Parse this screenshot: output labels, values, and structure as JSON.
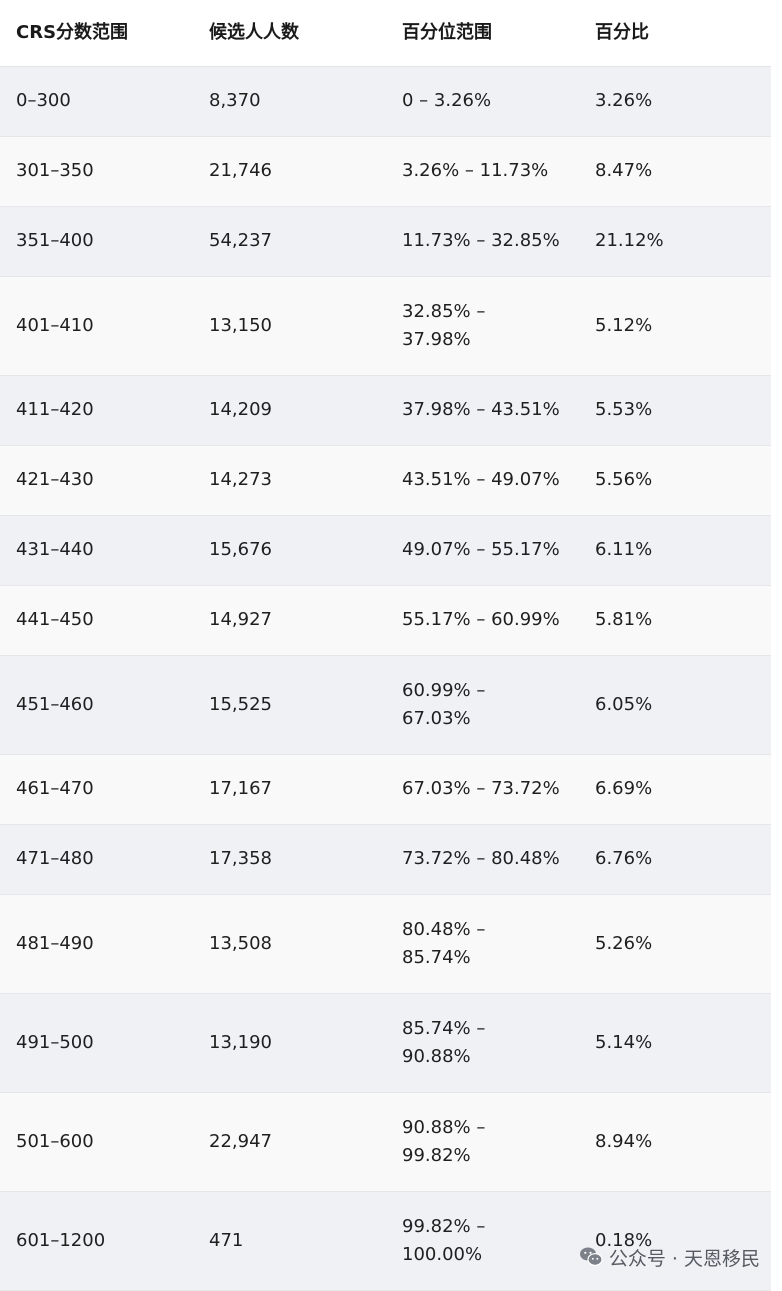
{
  "table": {
    "headers": [
      "CRS分数范围",
      "候选人人数",
      "百分位范围",
      "百分比"
    ],
    "rows": [
      {
        "score": "0–300",
        "count": "8,370",
        "range": [
          "0 – 3.26%"
        ],
        "pct": "3.26%"
      },
      {
        "score": "301–350",
        "count": "21,746",
        "range": [
          "3.26% – 11.73%"
        ],
        "pct": "8.47%"
      },
      {
        "score": "351–400",
        "count": "54,237",
        "range": [
          "11.73% – 32.85%"
        ],
        "pct": "21.12%"
      },
      {
        "score": "401–410",
        "count": "13,150",
        "range": [
          "32.85% –",
          "37.98%"
        ],
        "pct": "5.12%"
      },
      {
        "score": "411–420",
        "count": "14,209",
        "range": [
          "37.98% – 43.51%"
        ],
        "pct": "5.53%"
      },
      {
        "score": "421–430",
        "count": "14,273",
        "range": [
          "43.51% – 49.07%"
        ],
        "pct": "5.56%"
      },
      {
        "score": "431–440",
        "count": "15,676",
        "range": [
          "49.07% – 55.17%"
        ],
        "pct": "6.11%"
      },
      {
        "score": "441–450",
        "count": "14,927",
        "range": [
          "55.17% – 60.99%"
        ],
        "pct": "5.81%"
      },
      {
        "score": "451–460",
        "count": "15,525",
        "range": [
          "60.99% –",
          "67.03%"
        ],
        "pct": "6.05%"
      },
      {
        "score": "461–470",
        "count": "17,167",
        "range": [
          "67.03% – 73.72%"
        ],
        "pct": "6.69%"
      },
      {
        "score": "471–480",
        "count": "17,358",
        "range": [
          "73.72% – 80.48%"
        ],
        "pct": "6.76%"
      },
      {
        "score": "481–490",
        "count": "13,508",
        "range": [
          "80.48% –",
          "85.74%"
        ],
        "pct": "5.26%"
      },
      {
        "score": "491–500",
        "count": "13,190",
        "range": [
          "85.74% –",
          "90.88%"
        ],
        "pct": "5.14%"
      },
      {
        "score": "501–600",
        "count": "22,947",
        "range": [
          "90.88% –",
          "99.82%"
        ],
        "pct": "8.94%"
      },
      {
        "score": "601–1200",
        "count": "471",
        "range": [
          "99.82% –",
          "100.00%"
        ],
        "pct": "0.18%"
      }
    ]
  },
  "watermark": {
    "icon": "wechat-icon",
    "text": "公众号 · 天恩移民"
  }
}
